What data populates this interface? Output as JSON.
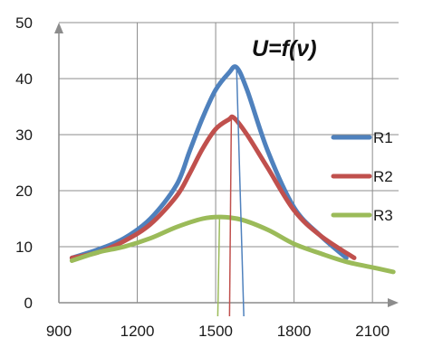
{
  "chart_data": {
    "type": "line",
    "title": "U=f(ν)",
    "xlim": [
      900,
      2200
    ],
    "ylim": [
      0,
      50
    ],
    "x_ticks": [
      "900",
      "1200",
      "1500",
      "1800",
      "2100"
    ],
    "y_ticks": [
      "0",
      "10",
      "20",
      "30",
      "40",
      "50"
    ],
    "grid": "vertical and horizontal",
    "legend_position": "right",
    "series": [
      {
        "name": "R1",
        "color": "#4f81bd",
        "x": [
          950,
          1050,
          1150,
          1250,
          1350,
          1400,
          1450,
          1500,
          1550,
          1580,
          1620,
          1700,
          1800,
          1900,
          2000
        ],
        "y": [
          8,
          9.5,
          11.5,
          15,
          21,
          27,
          33,
          38,
          41,
          42,
          38,
          27,
          17,
          12,
          8
        ]
      },
      {
        "name": "R2",
        "color": "#c0504d",
        "x": [
          950,
          1050,
          1150,
          1250,
          1350,
          1400,
          1450,
          1500,
          1550,
          1570,
          1620,
          1700,
          1800,
          1900,
          2030
        ],
        "y": [
          8,
          9,
          11,
          14,
          19,
          23,
          27.5,
          31,
          32.7,
          33,
          30,
          24,
          16.5,
          12,
          8
        ]
      },
      {
        "name": "R3",
        "color": "#9bbb59",
        "x": [
          950,
          1050,
          1150,
          1250,
          1350,
          1450,
          1520,
          1600,
          1700,
          1800,
          1900,
          2000,
          2100,
          2180
        ],
        "y": [
          7.5,
          9,
          10,
          11.5,
          13.5,
          15,
          15.3,
          14.8,
          13,
          10.5,
          8.8,
          7.3,
          6.3,
          5.5
        ]
      }
    ],
    "markers": [
      {
        "series": "R1",
        "x": 1580,
        "color": "#4f81bd"
      },
      {
        "series": "R2",
        "x": 1560,
        "color": "#c0504d"
      },
      {
        "series": "R3",
        "x": 1515,
        "color": "#9bbb59"
      }
    ]
  }
}
